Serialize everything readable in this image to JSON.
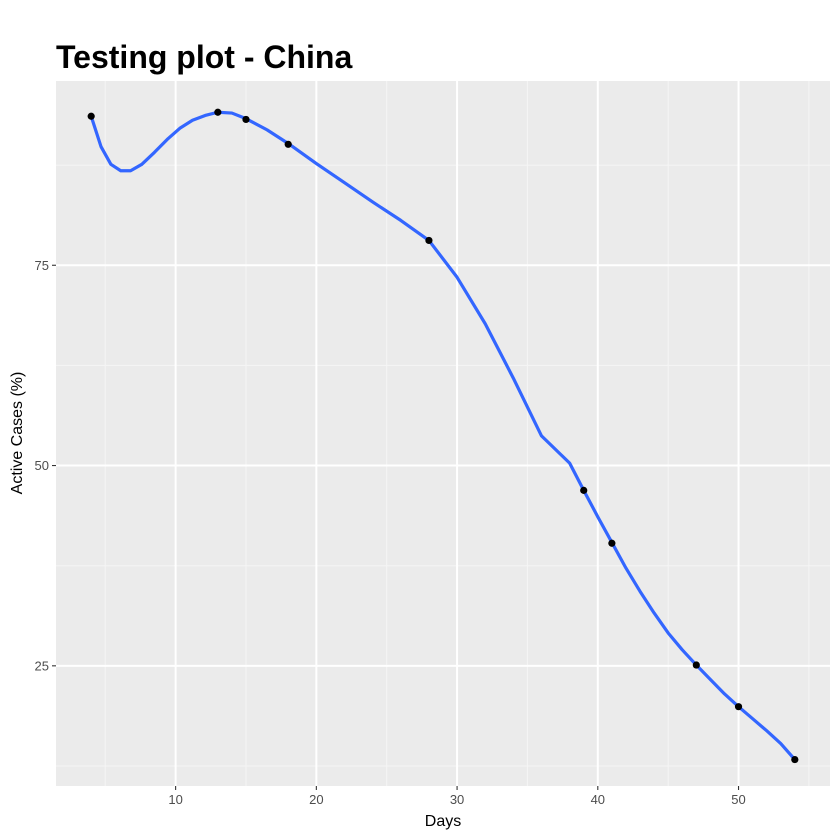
{
  "chart_data": {
    "type": "scatter",
    "title": "Testing plot - China",
    "xlabel": "Days",
    "ylabel": "Active Cases (%)",
    "xlim": [
      1.5,
      56.5
    ],
    "ylim": [
      10.0,
      98.0
    ],
    "x_ticks": [
      10,
      20,
      30,
      40,
      50
    ],
    "y_ticks": [
      25,
      50,
      75
    ],
    "x_minor_ticks": [
      5,
      15,
      25,
      35,
      45,
      55
    ],
    "y_minor_ticks": [
      12.5,
      37.5,
      62.5,
      87.5
    ],
    "grid": true,
    "legend": "none",
    "points": {
      "x": [
        4,
        13,
        15,
        18,
        28,
        39,
        41,
        47,
        50,
        54
      ],
      "y": [
        93.6,
        94.1,
        93.2,
        90.1,
        78.1,
        46.9,
        40.3,
        25.1,
        19.9,
        13.3
      ]
    },
    "smooth": {
      "x": [
        4,
        4.7,
        5.4,
        6.1,
        6.8,
        7.6,
        8.5,
        9.4,
        10.3,
        11.2,
        12.1,
        13,
        14,
        15,
        16.5,
        18,
        20,
        22,
        24,
        26,
        28,
        30,
        32,
        34,
        36,
        38,
        39,
        40,
        41,
        42,
        43,
        44,
        45,
        46,
        47,
        48,
        49,
        50,
        51,
        52,
        53,
        54
      ],
      "y": [
        93.6,
        89.8,
        87.6,
        86.8,
        86.8,
        87.6,
        89.1,
        90.7,
        92.1,
        93.1,
        93.7,
        94.1,
        94.0,
        93.3,
        91.9,
        90.2,
        87.7,
        85.3,
        82.9,
        80.6,
        78.1,
        73.5,
        67.7,
        60.9,
        53.7,
        50.3,
        46.9,
        43.6,
        40.4,
        37.2,
        34.3,
        31.6,
        29.1,
        27.0,
        25.1,
        23.3,
        21.5,
        19.9,
        18.4,
        16.9,
        15.3,
        13.3
      ]
    },
    "colors": {
      "panel_bg": "#ebebeb",
      "grid_major": "#ffffff",
      "grid_minor": "#f5f5f5",
      "line": "#3366ff",
      "point": "#000000",
      "tick_text": "#4d4d4d",
      "tick_mark": "#333333"
    }
  }
}
